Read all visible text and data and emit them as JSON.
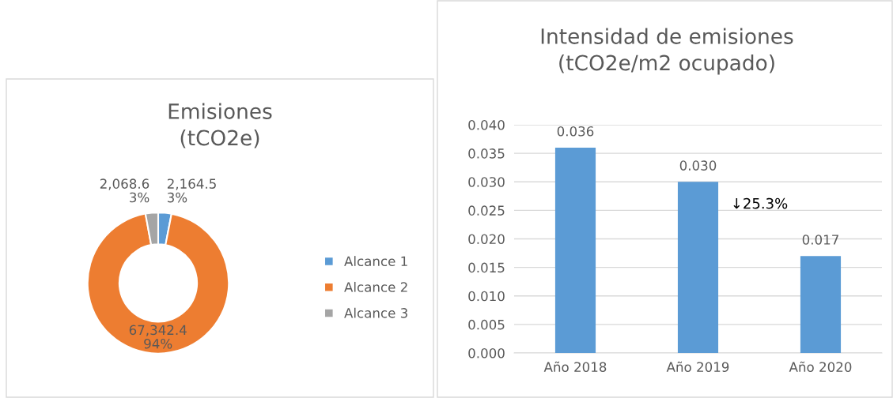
{
  "chart_data": [
    {
      "type": "donut",
      "title": "Emisiones\n(tCO2e)",
      "categories": [
        "Alcance 1",
        "Alcance 2",
        "Alcance 3"
      ],
      "values": [
        2164.5,
        67342.4,
        2068.6
      ],
      "colors": [
        "#5b9bd5",
        "#ed7d31",
        "#a5a5a5"
      ],
      "value_labels": [
        "2,164.5\n3%",
        "67,342.4\n94%",
        "2,068.6\n3%"
      ],
      "legend": "right"
    },
    {
      "type": "bar",
      "title": "Intensidad de emisiones\n(tCO2e/m2 ocupado)",
      "categories": [
        "Año 2018",
        "Año 2019",
        "Año 2020"
      ],
      "values": [
        0.036,
        0.03,
        0.017
      ],
      "color": "#5b9bd5",
      "data_labels": true,
      "value_labels": [
        "0.036",
        "0.030",
        "0.017"
      ],
      "ylim": [
        0,
        0.04
      ],
      "yticks": [
        {
          "value": 0,
          "label": "0.000"
        },
        {
          "value": 0.005,
          "label": "0.005"
        },
        {
          "value": 0.01,
          "label": "0.010"
        },
        {
          "value": 0.015,
          "label": "0.015"
        },
        {
          "value": 0.02,
          "label": "0.020"
        },
        {
          "value": 0.025,
          "label": "0.025"
        },
        {
          "value": 0.03,
          "label": "0.030"
        },
        {
          "value": 0.035,
          "label": "0.035"
        },
        {
          "value": 0.04,
          "label": "0.040"
        }
      ],
      "grid": "y",
      "annotations": [
        "↓25.3%"
      ]
    }
  ]
}
